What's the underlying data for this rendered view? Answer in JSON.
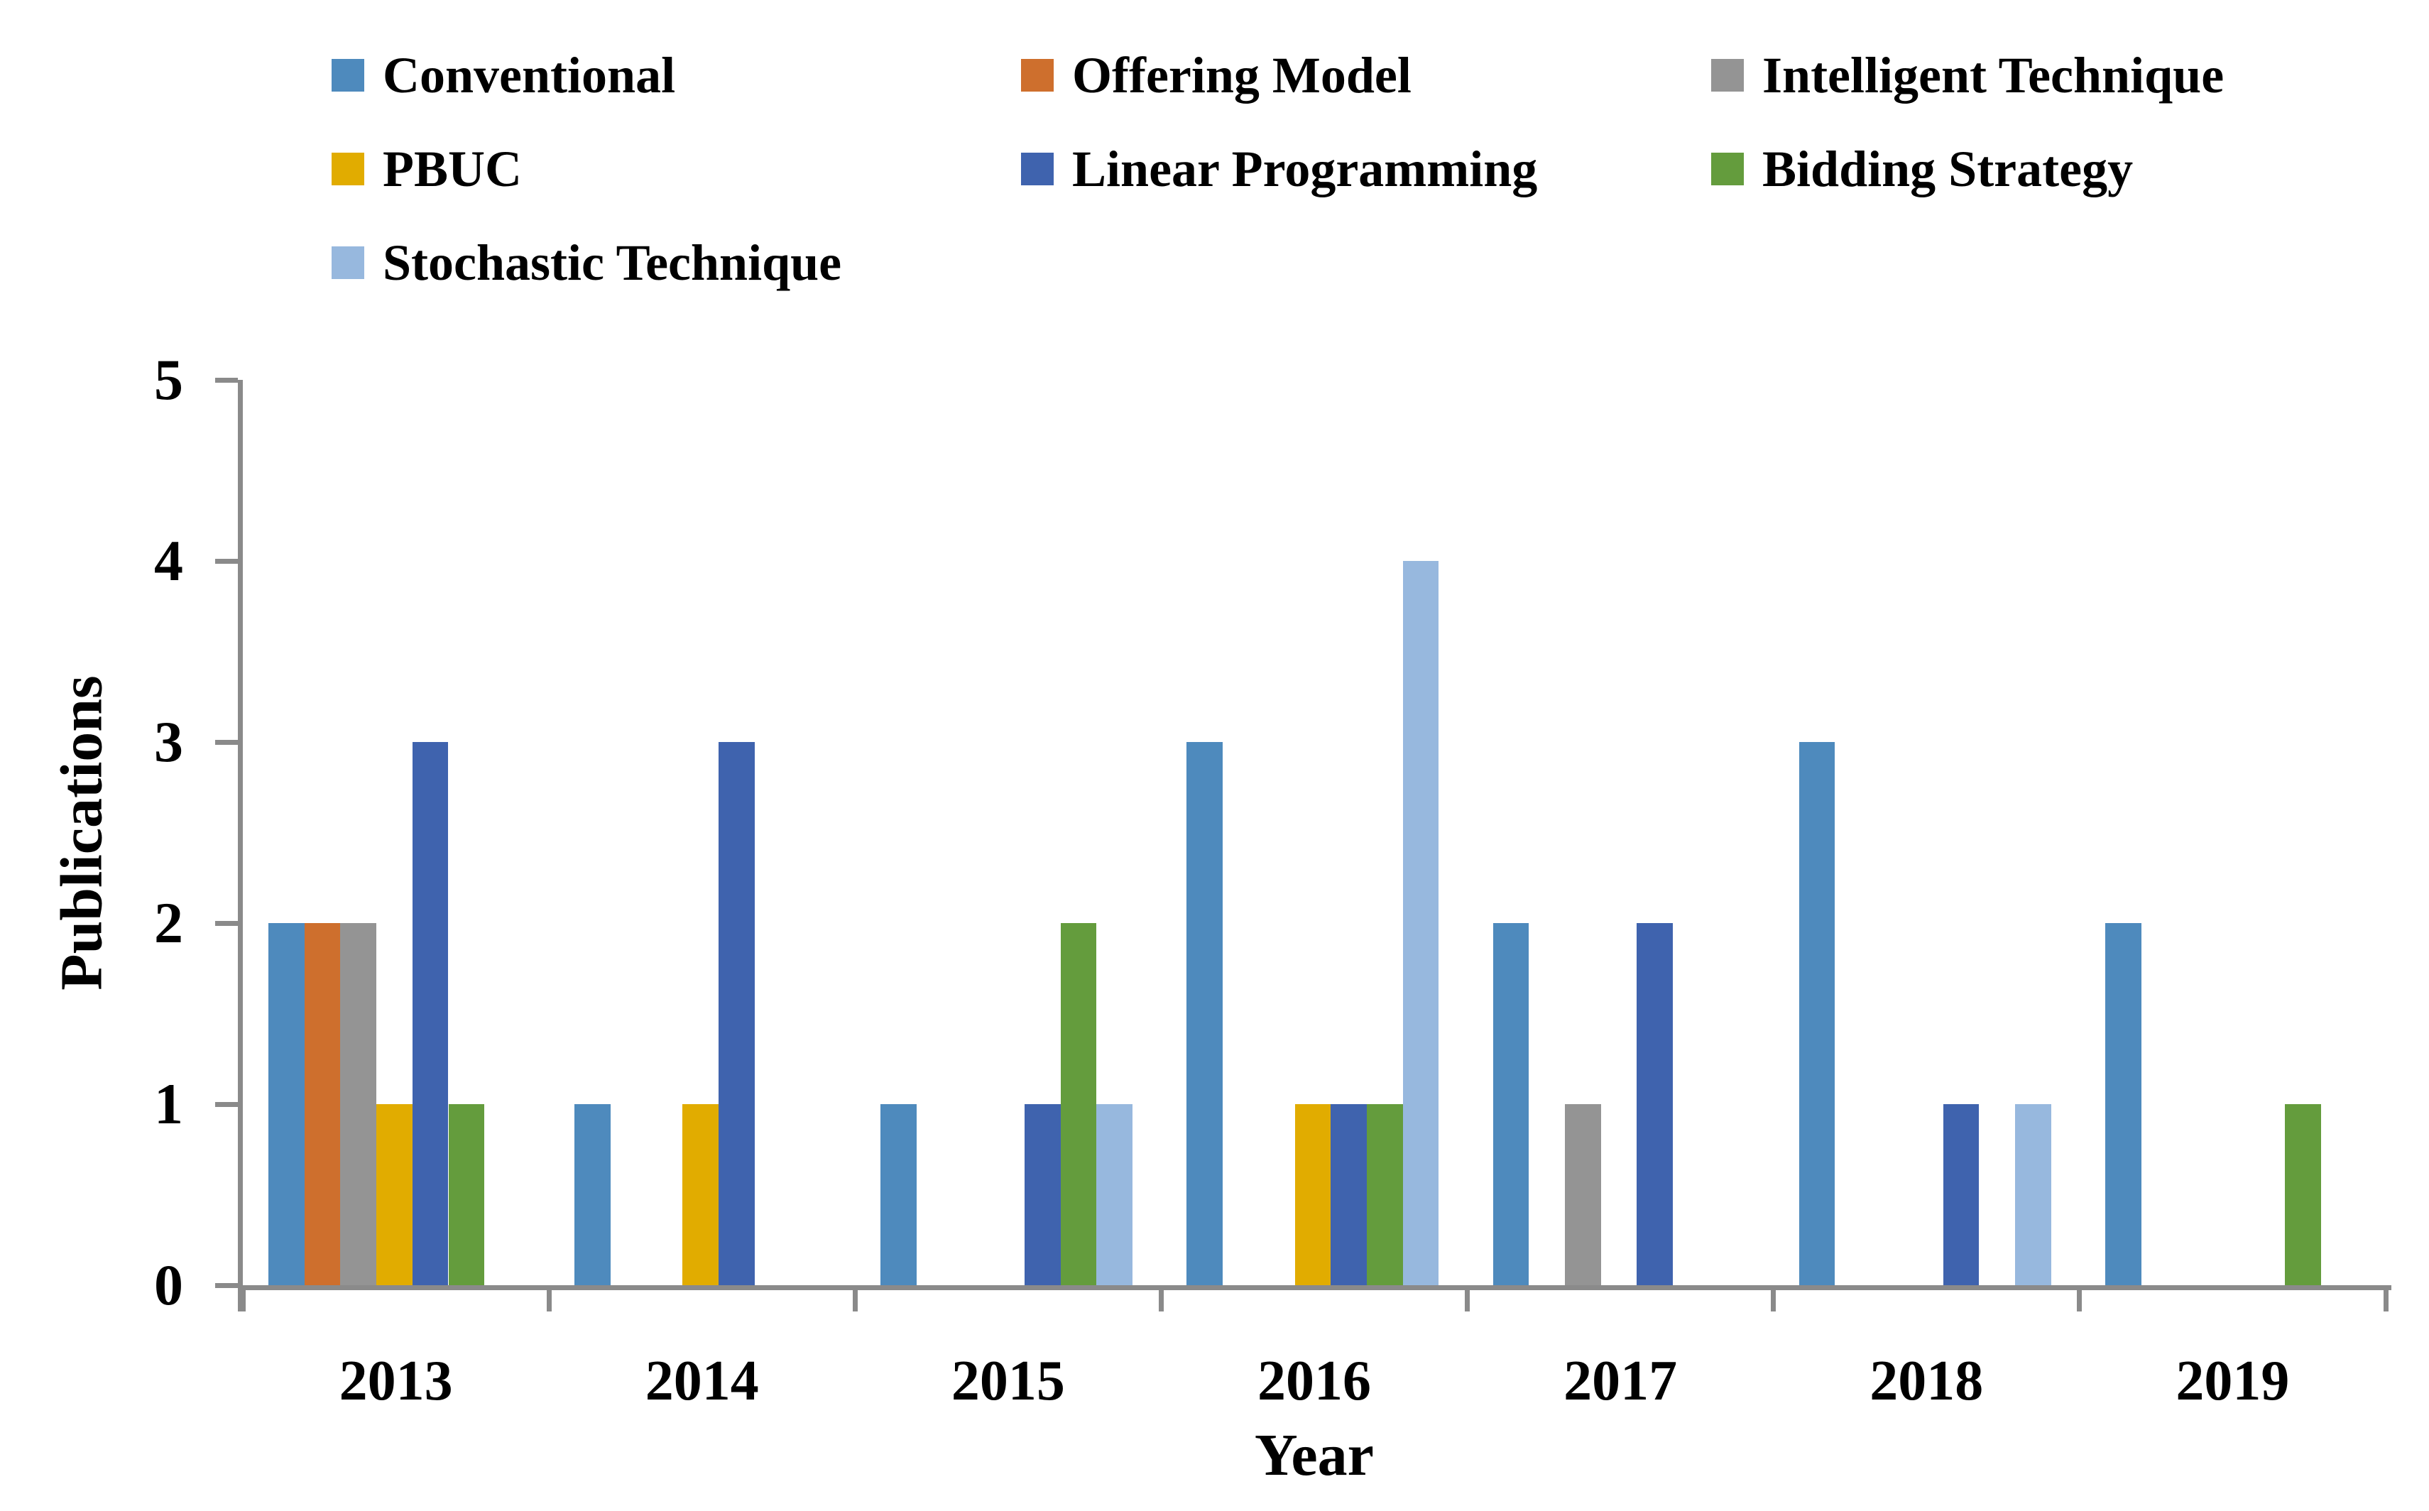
{
  "figure": {
    "background_color": "#FFFFFF",
    "axis_color": "#8A8A8A",
    "text_color": "#000000"
  },
  "chart_data": {
    "type": "bar",
    "title": "",
    "xlabel": "Year",
    "ylabel": "Publications",
    "ylim": [
      0,
      5
    ],
    "yticks": [
      "0",
      "1",
      "2",
      "3",
      "4",
      "5"
    ],
    "grid": false,
    "legend_position": "top-left, 3 columns",
    "categories": [
      "2013",
      "2014",
      "2015",
      "2016",
      "2017",
      "2018",
      "2019"
    ],
    "series": [
      {
        "name": "Conventional",
        "color": "#4E8ABD",
        "values": [
          2,
          1,
          1,
          3,
          2,
          3,
          2
        ]
      },
      {
        "name": "Offering Model",
        "color": "#CE6F2D",
        "values": [
          2,
          0,
          0,
          0,
          0,
          0,
          0
        ]
      },
      {
        "name": "Intelligent Technique",
        "color": "#949494",
        "values": [
          2,
          0,
          0,
          0,
          1,
          0,
          0
        ]
      },
      {
        "name": "PBUC",
        "color": "#E1AC00",
        "values": [
          1,
          1,
          0,
          1,
          0,
          0,
          0
        ]
      },
      {
        "name": "Linear Programming",
        "color": "#3F63AE",
        "values": [
          3,
          3,
          1,
          1,
          2,
          1,
          0
        ]
      },
      {
        "name": "Bidding Strategy",
        "color": "#649C3D",
        "values": [
          1,
          0,
          2,
          1,
          0,
          0,
          1
        ]
      },
      {
        "name": "Stochastic Technique",
        "color": "#97B8DE",
        "values": [
          0,
          0,
          1,
          4,
          0,
          1,
          0
        ]
      }
    ]
  }
}
